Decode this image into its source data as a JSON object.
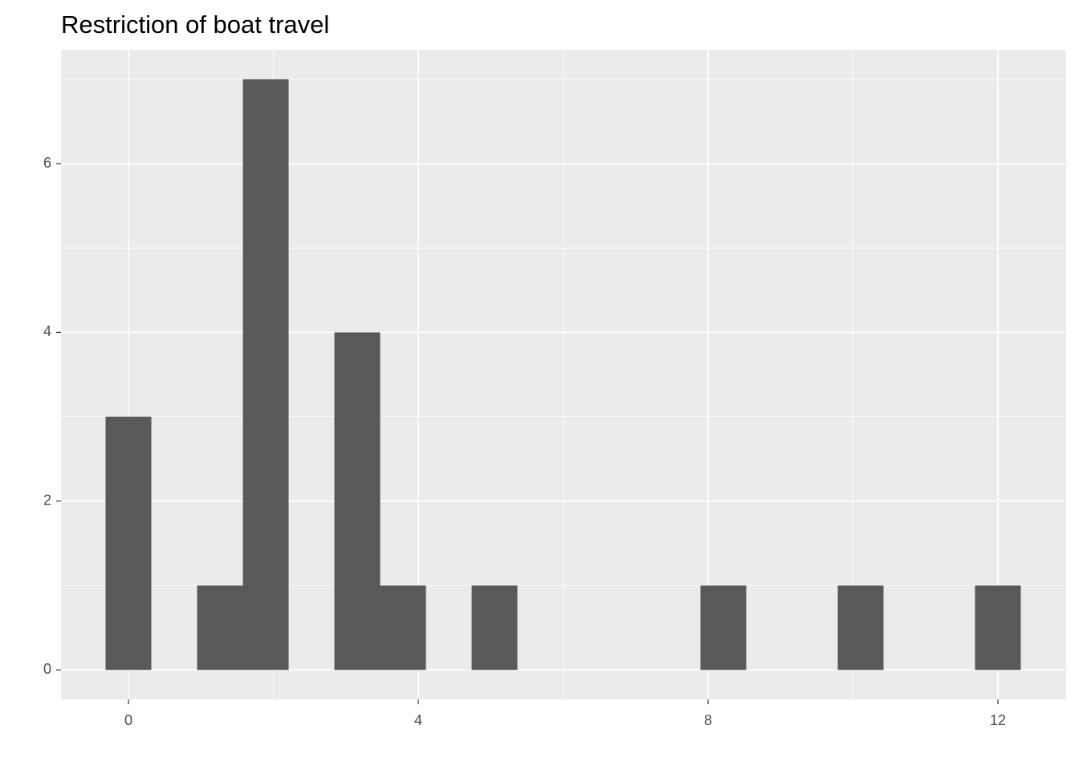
{
  "chart_data": {
    "type": "histogram",
    "title": "Restriction of boat travel",
    "bins": [
      -0.3158,
      0.3158,
      0.9474,
      1.5789,
      2.2105,
      2.8421,
      3.4737,
      4.1053,
      4.7368,
      5.3684,
      6,
      6.6316,
      7.2632,
      7.8947,
      8.5263,
      9.1579,
      9.7895,
      10.4211,
      11.0526,
      11.6842,
      12.3158
    ],
    "values": [
      3,
      0,
      1,
      7,
      0,
      4,
      1,
      0,
      1,
      0,
      0,
      0,
      0,
      1,
      0,
      0,
      1,
      0,
      0,
      1
    ],
    "color": "#595959",
    "xlim": [
      -0.931,
      12.942
    ],
    "xticks": [
      0,
      4,
      8,
      12
    ],
    "ylim": [
      -0.35,
      7.35
    ],
    "yticks": [
      0,
      2,
      4,
      6
    ],
    "grid": true
  }
}
